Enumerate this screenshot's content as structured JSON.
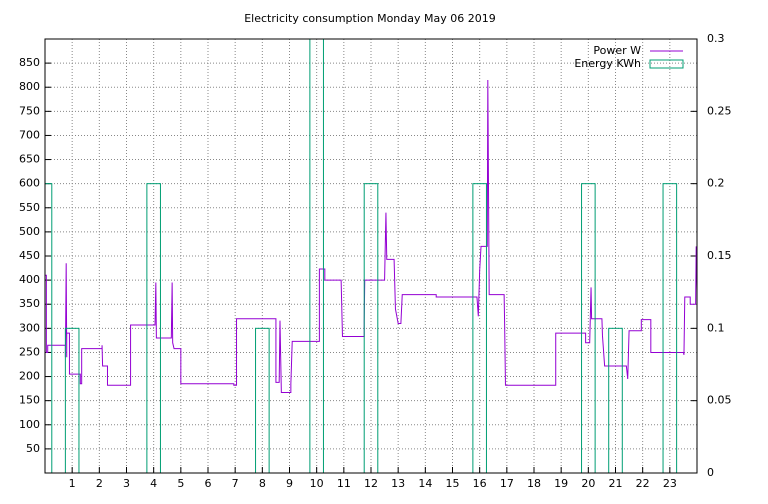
{
  "chart_data": {
    "type": "line",
    "title": "Electricity consumption Monday May 06 2019",
    "xlim": [
      0,
      24
    ],
    "xticks": [
      1,
      2,
      3,
      4,
      5,
      6,
      7,
      8,
      9,
      10,
      11,
      12,
      13,
      14,
      15,
      16,
      17,
      18,
      19,
      20,
      21,
      22,
      23
    ],
    "ylim": [
      0,
      900
    ],
    "yticks": [
      50,
      100,
      150,
      200,
      250,
      300,
      350,
      400,
      450,
      500,
      550,
      600,
      650,
      700,
      750,
      800,
      850
    ],
    "y2lim": [
      0,
      0.3
    ],
    "y2ticks": [
      0,
      0.05,
      0.1,
      0.15,
      0.2,
      0.25,
      0.3
    ],
    "grid": true,
    "legend": "top-right",
    "series": [
      {
        "name": "Power W",
        "color": "#9400d3",
        "style": "line",
        "x": [
          0,
          0.05,
          0.05,
          0.1,
          0.1,
          0.75,
          0.75,
          0.78,
          0.8,
          0.8,
          0.9,
          0.9,
          1.3,
          1.3,
          1.35,
          1.35,
          2.1,
          2.1,
          2.12,
          2.3,
          2.3,
          3.15,
          3.15,
          4.05,
          4.08,
          4.1,
          4.65,
          4.68,
          4.7,
          4.75,
          5.0,
          5.0,
          6.95,
          6.95,
          7.05,
          7.05,
          8.5,
          8.5,
          8.62,
          8.65,
          8.7,
          9.05,
          9.05,
          9.1,
          10.1,
          10.1,
          10.3,
          10.3,
          10.9,
          10.95,
          11.75,
          11.75,
          11.77,
          12.5,
          12.55,
          12.58,
          12.85,
          12.9,
          13.0,
          13.1,
          13.15,
          14.4,
          14.4,
          15.9,
          15.95,
          16.0,
          16.05,
          16.28,
          16.3,
          16.35,
          16.9,
          16.92,
          16.95,
          18.8,
          18.8,
          19.9,
          19.9,
          20.05,
          20.1,
          20.12,
          20.5,
          20.52,
          20.6,
          21.4,
          21.45,
          21.5,
          21.95,
          21.95,
          22.3,
          22.3,
          23.5,
          23.52,
          23.55,
          23.75,
          23.75,
          23.95,
          23.97,
          24
        ],
        "values": [
          410,
          410,
          250,
          250,
          265,
          265,
          240,
          435,
          240,
          290,
          290,
          205,
          205,
          185,
          185,
          258,
          258,
          265,
          222,
          222,
          182,
          182,
          307,
          307,
          395,
          280,
          280,
          395,
          270,
          258,
          258,
          185,
          185,
          182,
          182,
          320,
          320,
          188,
          188,
          316,
          167,
          167,
          185,
          273,
          273,
          423,
          423,
          400,
          400,
          283,
          283,
          315,
          400,
          400,
          540,
          443,
          443,
          340,
          310,
          310,
          370,
          370,
          365,
          365,
          325,
          420,
          470,
          470,
          815,
          370,
          370,
          305,
          182,
          182,
          290,
          290,
          270,
          270,
          385,
          320,
          320,
          285,
          222,
          222,
          195,
          295,
          295,
          318,
          318,
          250,
          250,
          245,
          365,
          365,
          350,
          350,
          470,
          380
        ]
      },
      {
        "name": "Energy KWh",
        "color": "#009e73",
        "style": "boxes",
        "axis": "y2",
        "x": [
          0,
          1,
          2,
          3,
          4,
          5,
          6,
          7,
          8,
          9,
          10,
          11,
          12,
          13,
          14,
          15,
          16,
          17,
          18,
          19,
          20,
          21,
          22,
          23
        ],
        "values": [
          0.2,
          0.1,
          0,
          0,
          0.2,
          0,
          0,
          0,
          0.1,
          0,
          0.3,
          0,
          0.2,
          0,
          0,
          0,
          0.2,
          0,
          0,
          0,
          0.2,
          0.1,
          0,
          0.2
        ]
      }
    ]
  }
}
